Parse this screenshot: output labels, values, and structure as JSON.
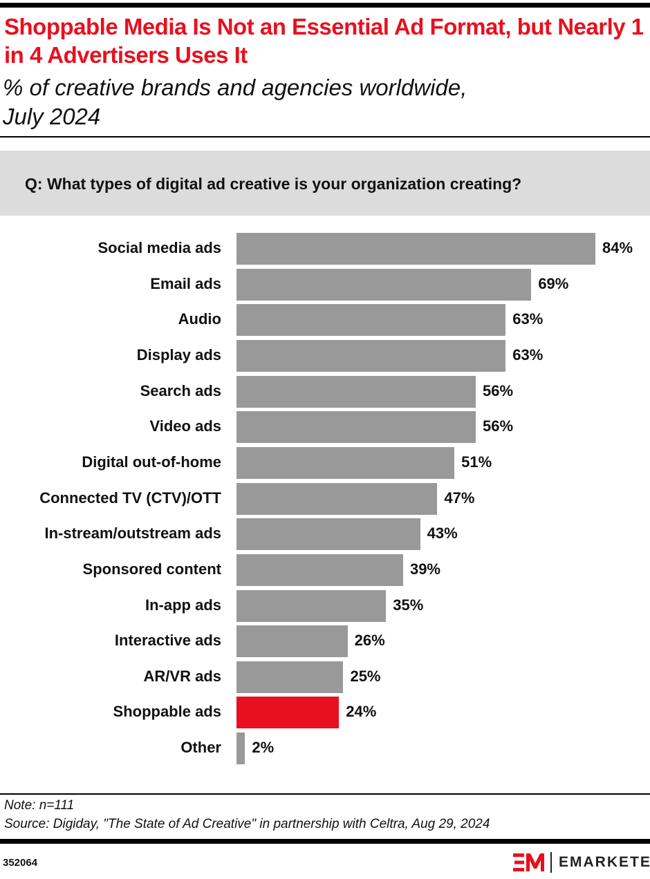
{
  "header": {
    "title": "Shoppable Media Is Not an Essential Ad Format, but Nearly 1 in 4 Advertisers Uses It",
    "subtitle_line1": "% of creative brands and agencies worldwide,",
    "subtitle_line2": "July 2024"
  },
  "chart_data": {
    "type": "bar",
    "orientation": "horizontal",
    "question": "Q: What types of digital ad creative is your organization creating?",
    "categories": [
      "Social media ads",
      "Email ads",
      "Audio",
      "Display ads",
      "Search ads",
      "Video ads",
      "Digital out-of-home",
      "Connected TV (CTV)/OTT",
      "In-stream/outstream ads",
      "Sponsored content",
      "In-app ads",
      "Interactive ads",
      "AR/VR ads",
      "Shoppable ads",
      "Other"
    ],
    "values": [
      84,
      69,
      63,
      63,
      56,
      56,
      51,
      47,
      43,
      39,
      35,
      26,
      25,
      24,
      2
    ],
    "value_labels": [
      "84%",
      "69%",
      "63%",
      "63%",
      "56%",
      "56%",
      "51%",
      "47%",
      "43%",
      "39%",
      "35%",
      "26%",
      "25%",
      "24%",
      "2%"
    ],
    "highlight": "Shoppable ads",
    "colors": {
      "default": "#999999",
      "highlight": "#e8101e"
    },
    "xlim": [
      0,
      84
    ],
    "grid": false
  },
  "footer": {
    "note": "Note: n=111",
    "source": "Source: Digiday, \"The State of Ad Creative\" in partnership with Celtra, Aug 29, 2024",
    "id": "352064",
    "logo_text": "EMARKETER"
  }
}
